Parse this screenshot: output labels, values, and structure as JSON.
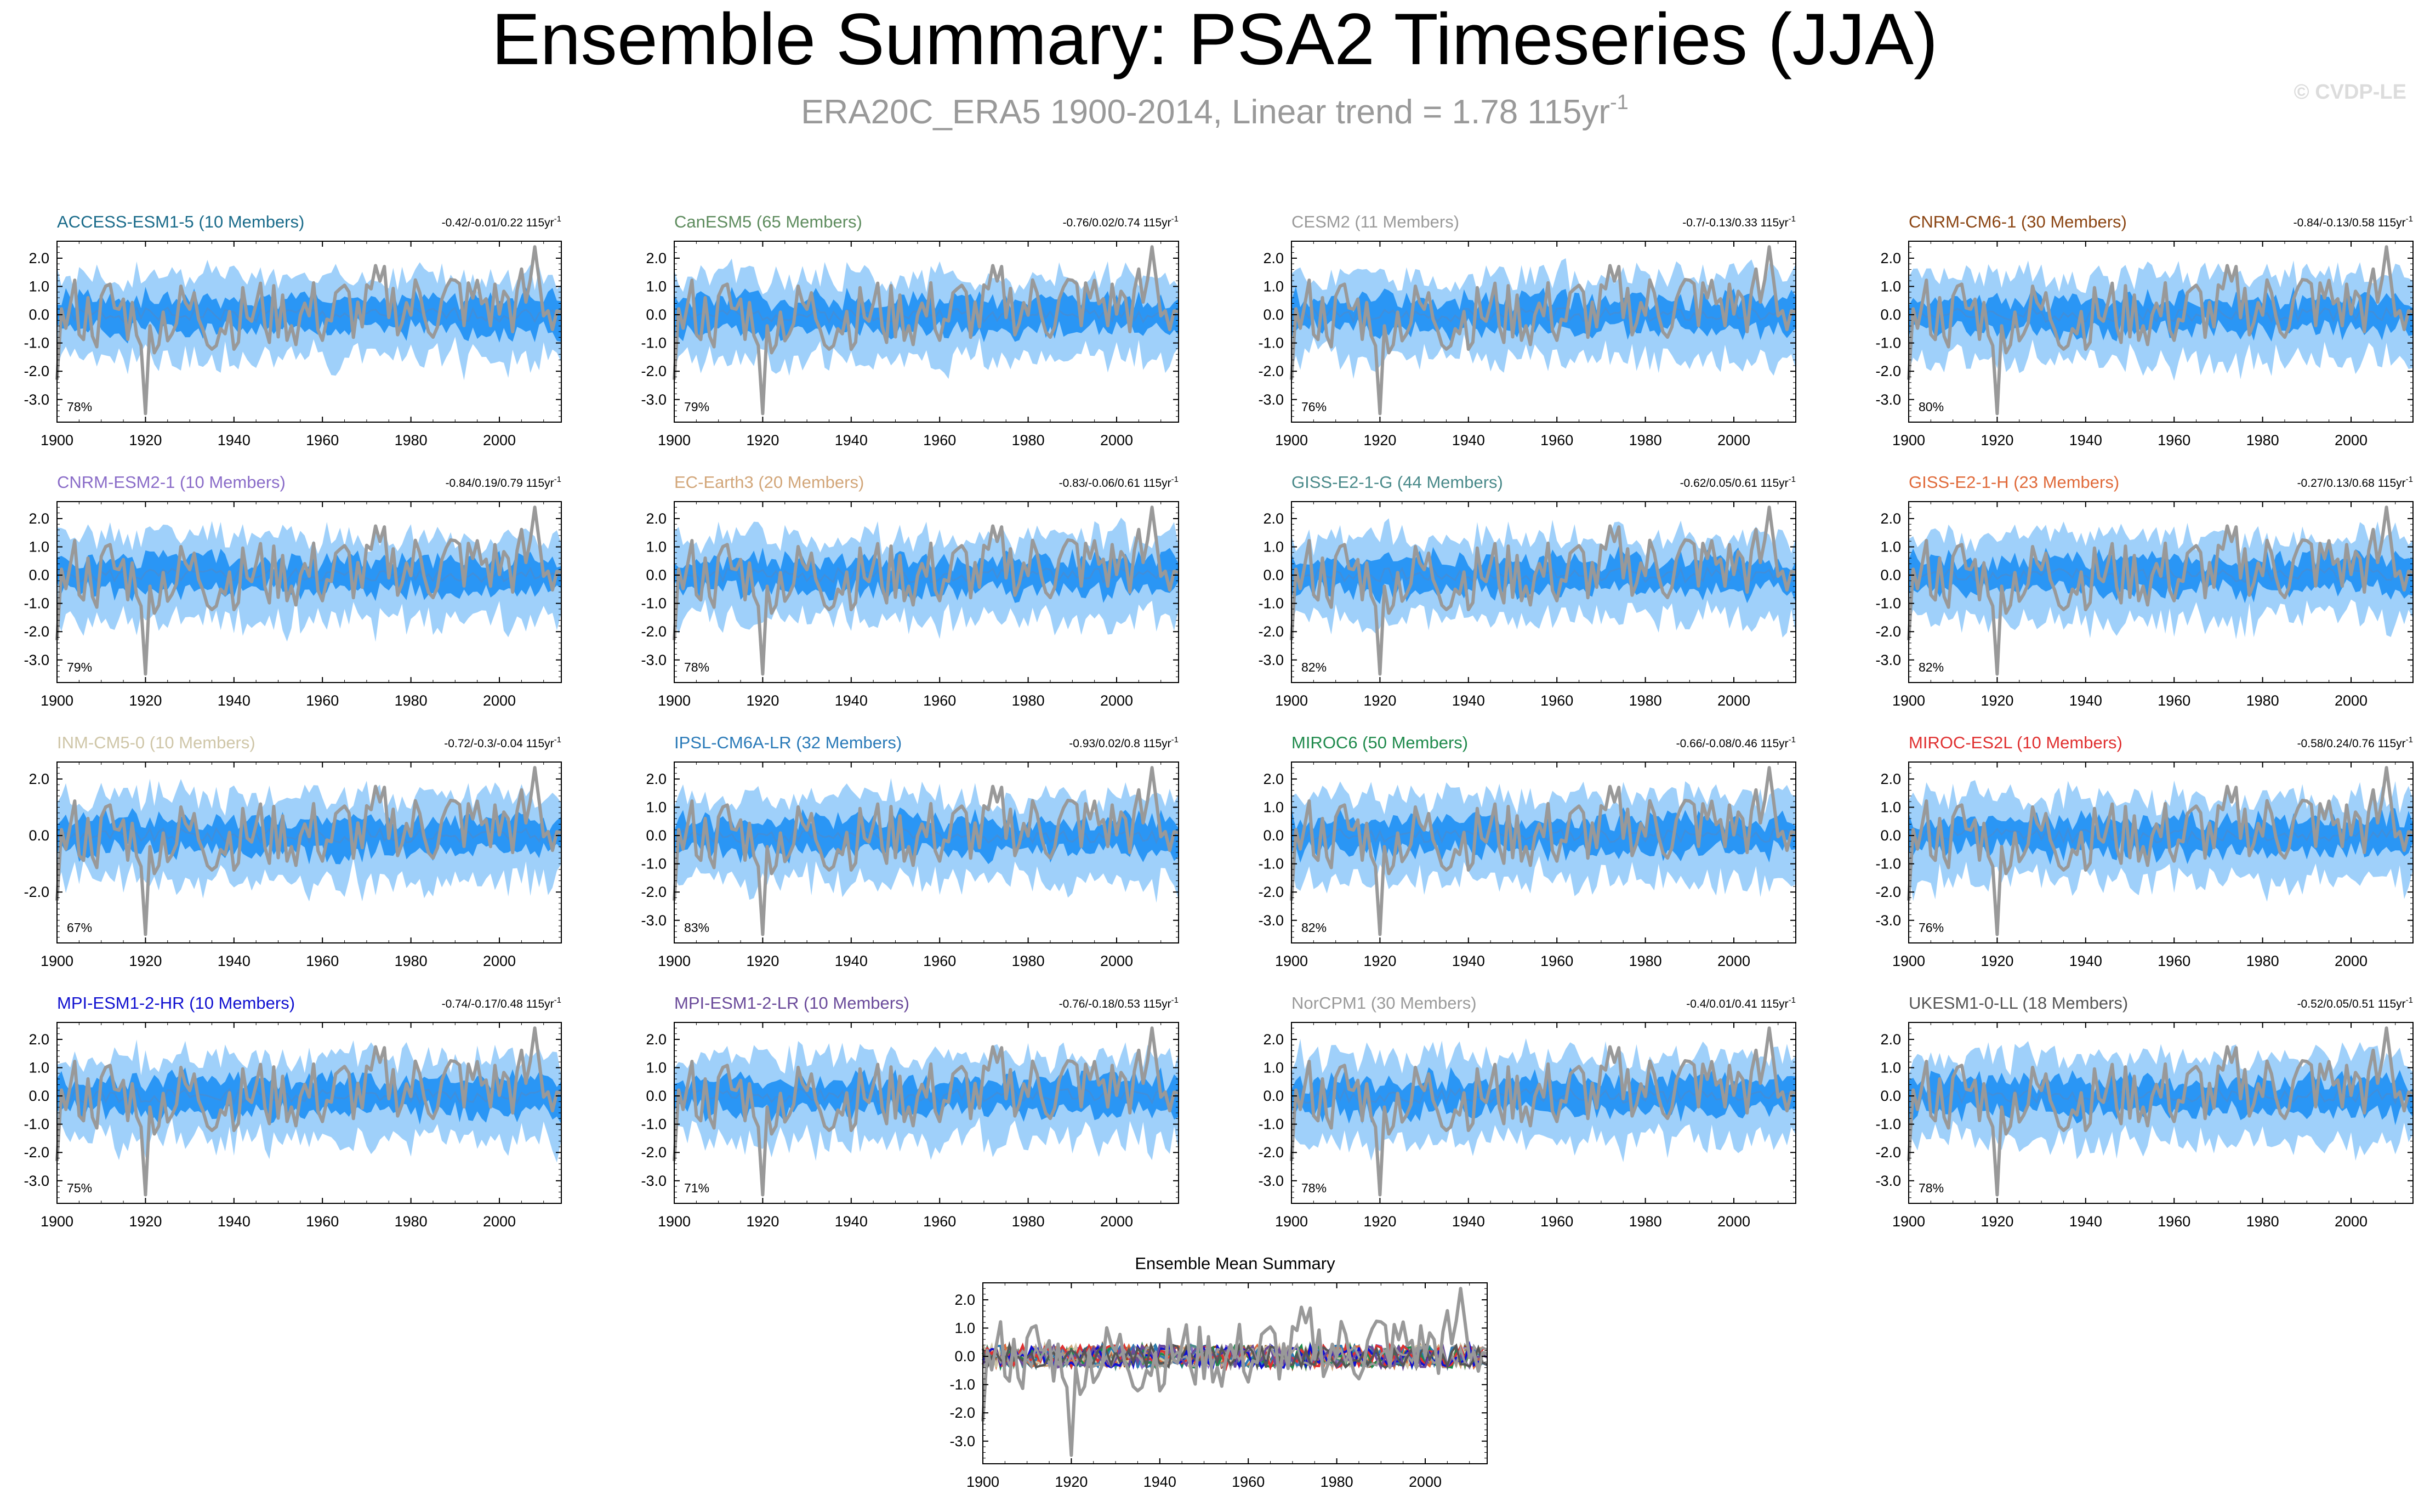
{
  "title": "Ensemble Summary: PSA2 Timeseries (JJA)",
  "subtitle": {
    "prefix": "ERA20C_ERA5 1900-2014, Linear trend = 1.78 115yr",
    "superscript": "-1"
  },
  "copyright": "© CVDP-LE",
  "colors": {
    "observation": "#999999",
    "ensemble_mean": "#3f8fdc",
    "inner_band": "#2a96f5",
    "outer_band": "#9fd0fa"
  },
  "chart_data": [
    {
      "type": "area",
      "name": "ACCESS-ESM1-5",
      "title": "ACCESS-ESM1-5 (10 Members)",
      "title_color": "#1a6b8a",
      "range": "-0.42/-0.01/0.22 115yr",
      "range_sup": "-1",
      "percent": "78%",
      "yticks": [
        "2.0",
        "1.0",
        "0.0",
        "-1.0",
        "-2.0",
        "-3.0"
      ],
      "ytick_values": [
        2,
        1,
        0,
        -1,
        -2,
        -3
      ],
      "xticks": [
        "1900",
        "1920",
        "1940",
        "1960",
        "1980",
        "2000"
      ],
      "xlim": [
        1900,
        2014
      ],
      "ylim": [
        -3.8,
        2.6
      ],
      "seed": 1
    },
    {
      "type": "area",
      "name": "CanESM5",
      "title": "CanESM5 (65 Members)",
      "title_color": "#5e8c5e",
      "range": "-0.76/0.02/0.74 115yr",
      "range_sup": "-1",
      "percent": "79%",
      "yticks": [
        "2.0",
        "1.0",
        "0.0",
        "-1.0",
        "-2.0",
        "-3.0"
      ],
      "ytick_values": [
        2,
        1,
        0,
        -1,
        -2,
        -3
      ],
      "xticks": [
        "1900",
        "1920",
        "1940",
        "1960",
        "1980",
        "2000"
      ],
      "xlim": [
        1900,
        2014
      ],
      "ylim": [
        -3.8,
        2.6
      ],
      "seed": 2
    },
    {
      "type": "area",
      "name": "CESM2",
      "title": "CESM2 (11 Members)",
      "title_color": "#9a9a9a",
      "range": "-0.7/-0.13/0.33 115yr",
      "range_sup": "-1",
      "percent": "76%",
      "yticks": [
        "2.0",
        "1.0",
        "0.0",
        "-1.0",
        "-2.0",
        "-3.0"
      ],
      "ytick_values": [
        2,
        1,
        0,
        -1,
        -2,
        -3
      ],
      "xticks": [
        "1900",
        "1920",
        "1940",
        "1960",
        "1980",
        "2000"
      ],
      "xlim": [
        1900,
        2014
      ],
      "ylim": [
        -3.8,
        2.6
      ],
      "seed": 3
    },
    {
      "type": "area",
      "name": "CNRM-CM6-1",
      "title": "CNRM-CM6-1 (30 Members)",
      "title_color": "#8b4513",
      "range": "-0.84/-0.13/0.58 115yr",
      "range_sup": "-1",
      "percent": "80%",
      "yticks": [
        "2.0",
        "1.0",
        "0.0",
        "-1.0",
        "-2.0",
        "-3.0"
      ],
      "ytick_values": [
        2,
        1,
        0,
        -1,
        -2,
        -3
      ],
      "xticks": [
        "1900",
        "1920",
        "1940",
        "1960",
        "1980",
        "2000"
      ],
      "xlim": [
        1900,
        2014
      ],
      "ylim": [
        -3.8,
        2.6
      ],
      "seed": 4
    },
    {
      "type": "area",
      "name": "CNRM-ESM2-1",
      "title": "CNRM-ESM2-1 (10 Members)",
      "title_color": "#8a6cc8",
      "range": "-0.84/0.19/0.79 115yr",
      "range_sup": "-1",
      "percent": "79%",
      "yticks": [
        "2.0",
        "1.0",
        "0.0",
        "-1.0",
        "-2.0",
        "-3.0"
      ],
      "ytick_values": [
        2,
        1,
        0,
        -1,
        -2,
        -3
      ],
      "xticks": [
        "1900",
        "1920",
        "1940",
        "1960",
        "1980",
        "2000"
      ],
      "xlim": [
        1900,
        2014
      ],
      "ylim": [
        -3.8,
        2.6
      ],
      "seed": 5
    },
    {
      "type": "area",
      "name": "EC-Earth3",
      "title": "EC-Earth3 (20 Members)",
      "title_color": "#d2a679",
      "range": "-0.83/-0.06/0.61 115yr",
      "range_sup": "-1",
      "percent": "78%",
      "yticks": [
        "2.0",
        "1.0",
        "0.0",
        "-1.0",
        "-2.0",
        "-3.0"
      ],
      "ytick_values": [
        2,
        1,
        0,
        -1,
        -2,
        -3
      ],
      "xticks": [
        "1900",
        "1920",
        "1940",
        "1960",
        "1980",
        "2000"
      ],
      "xlim": [
        1900,
        2014
      ],
      "ylim": [
        -3.8,
        2.6
      ],
      "seed": 6
    },
    {
      "type": "area",
      "name": "GISS-E2-1-G",
      "title": "GISS-E2-1-G (44 Members)",
      "title_color": "#4a8a8a",
      "range": "-0.62/0.05/0.61 115yr",
      "range_sup": "-1",
      "percent": "82%",
      "yticks": [
        "2.0",
        "1.0",
        "0.0",
        "-1.0",
        "-2.0",
        "-3.0"
      ],
      "ytick_values": [
        2,
        1,
        0,
        -1,
        -2,
        -3
      ],
      "xticks": [
        "1900",
        "1920",
        "1940",
        "1960",
        "1980",
        "2000"
      ],
      "xlim": [
        1900,
        2014
      ],
      "ylim": [
        -3.8,
        2.6
      ],
      "seed": 7
    },
    {
      "type": "area",
      "name": "GISS-E2-1-H",
      "title": "GISS-E2-1-H (23 Members)",
      "title_color": "#e06a3a",
      "range": "-0.27/0.13/0.68 115yr",
      "range_sup": "-1",
      "percent": "82%",
      "yticks": [
        "2.0",
        "1.0",
        "0.0",
        "-1.0",
        "-2.0",
        "-3.0"
      ],
      "ytick_values": [
        2,
        1,
        0,
        -1,
        -2,
        -3
      ],
      "xticks": [
        "1900",
        "1920",
        "1940",
        "1960",
        "1980",
        "2000"
      ],
      "xlim": [
        1900,
        2014
      ],
      "ylim": [
        -3.8,
        2.6
      ],
      "seed": 8
    },
    {
      "type": "area",
      "name": "INM-CM5-0",
      "title": "INM-CM5-0 (10 Members)",
      "title_color": "#cfc6a8",
      "range": "-0.72/-0.3/-0.04 115yr",
      "range_sup": "-1",
      "percent": "67%",
      "yticks": [
        "2.0",
        "0.0",
        "-2.0"
      ],
      "ytick_values": [
        2,
        0,
        -2
      ],
      "xticks": [
        "1900",
        "1920",
        "1940",
        "1960",
        "1980",
        "2000"
      ],
      "xlim": [
        1900,
        2014
      ],
      "ylim": [
        -3.8,
        2.6
      ],
      "seed": 9
    },
    {
      "type": "area",
      "name": "IPSL-CM6A-LR",
      "title": "IPSL-CM6A-LR (32 Members)",
      "title_color": "#2a7ab8",
      "range": "-0.93/0.02/0.8 115yr",
      "range_sup": "-1",
      "percent": "83%",
      "yticks": [
        "2.0",
        "1.0",
        "0.0",
        "-1.0",
        "-2.0",
        "-3.0"
      ],
      "ytick_values": [
        2,
        1,
        0,
        -1,
        -2,
        -3
      ],
      "xticks": [
        "1900",
        "1920",
        "1940",
        "1960",
        "1980",
        "2000"
      ],
      "xlim": [
        1900,
        2014
      ],
      "ylim": [
        -3.8,
        2.6
      ],
      "seed": 10
    },
    {
      "type": "area",
      "name": "MIROC6",
      "title": "MIROC6 (50 Members)",
      "title_color": "#1f8a4c",
      "range": "-0.66/-0.08/0.46 115yr",
      "range_sup": "-1",
      "percent": "82%",
      "yticks": [
        "2.0",
        "1.0",
        "0.0",
        "-1.0",
        "-2.0",
        "-3.0"
      ],
      "ytick_values": [
        2,
        1,
        0,
        -1,
        -2,
        -3
      ],
      "xticks": [
        "1900",
        "1920",
        "1940",
        "1960",
        "1980",
        "2000"
      ],
      "xlim": [
        1900,
        2014
      ],
      "ylim": [
        -3.8,
        2.6
      ],
      "seed": 11
    },
    {
      "type": "area",
      "name": "MIROC-ES2L",
      "title": "MIROC-ES2L (10 Members)",
      "title_color": "#e03030",
      "range": "-0.58/0.24/0.76 115yr",
      "range_sup": "-1",
      "percent": "76%",
      "yticks": [
        "2.0",
        "1.0",
        "0.0",
        "-1.0",
        "-2.0",
        "-3.0"
      ],
      "ytick_values": [
        2,
        1,
        0,
        -1,
        -2,
        -3
      ],
      "xticks": [
        "1900",
        "1920",
        "1940",
        "1960",
        "1980",
        "2000"
      ],
      "xlim": [
        1900,
        2014
      ],
      "ylim": [
        -3.8,
        2.6
      ],
      "seed": 12
    },
    {
      "type": "area",
      "name": "MPI-ESM1-2-HR",
      "title": "MPI-ESM1-2-HR (10 Members)",
      "title_color": "#1010d0",
      "range": "-0.74/-0.17/0.48 115yr",
      "range_sup": "-1",
      "percent": "75%",
      "yticks": [
        "2.0",
        "1.0",
        "0.0",
        "-1.0",
        "-2.0",
        "-3.0"
      ],
      "ytick_values": [
        2,
        1,
        0,
        -1,
        -2,
        -3
      ],
      "xticks": [
        "1900",
        "1920",
        "1940",
        "1960",
        "1980",
        "2000"
      ],
      "xlim": [
        1900,
        2014
      ],
      "ylim": [
        -3.8,
        2.6
      ],
      "seed": 13
    },
    {
      "type": "area",
      "name": "MPI-ESM1-2-LR",
      "title": "MPI-ESM1-2-LR (10 Members)",
      "title_color": "#6a4a9a",
      "range": "-0.76/-0.18/0.53 115yr",
      "range_sup": "-1",
      "percent": "71%",
      "yticks": [
        "2.0",
        "1.0",
        "0.0",
        "-1.0",
        "-2.0",
        "-3.0"
      ],
      "ytick_values": [
        2,
        1,
        0,
        -1,
        -2,
        -3
      ],
      "xticks": [
        "1900",
        "1920",
        "1940",
        "1960",
        "1980",
        "2000"
      ],
      "xlim": [
        1900,
        2014
      ],
      "ylim": [
        -3.8,
        2.6
      ],
      "seed": 14
    },
    {
      "type": "area",
      "name": "NorCPM1",
      "title": "NorCPM1 (30 Members)",
      "title_color": "#9a9a9a",
      "range": "-0.4/0.01/0.41 115yr",
      "range_sup": "-1",
      "percent": "78%",
      "yticks": [
        "2.0",
        "1.0",
        "0.0",
        "-1.0",
        "-2.0",
        "-3.0"
      ],
      "ytick_values": [
        2,
        1,
        0,
        -1,
        -2,
        -3
      ],
      "xticks": [
        "1900",
        "1920",
        "1940",
        "1960",
        "1980",
        "2000"
      ],
      "xlim": [
        1900,
        2014
      ],
      "ylim": [
        -3.8,
        2.6
      ],
      "seed": 15
    },
    {
      "type": "area",
      "name": "UKESM1-0-LL",
      "title": "UKESM1-0-LL (18 Members)",
      "title_color": "#555555",
      "range": "-0.52/0.05/0.51 115yr",
      "range_sup": "-1",
      "percent": "78%",
      "yticks": [
        "2.0",
        "1.0",
        "0.0",
        "-1.0",
        "-2.0",
        "-3.0"
      ],
      "ytick_values": [
        2,
        1,
        0,
        -1,
        -2,
        -3
      ],
      "xticks": [
        "1900",
        "1920",
        "1940",
        "1960",
        "1980",
        "2000"
      ],
      "xlim": [
        1900,
        2014
      ],
      "ylim": [
        -3.8,
        2.6
      ],
      "seed": 16
    }
  ],
  "summary": {
    "type": "line",
    "title": "Ensemble Mean Summary",
    "yticks": [
      "2.0",
      "1.0",
      "0.0",
      "-1.0",
      "-2.0",
      "-3.0"
    ],
    "ytick_values": [
      2,
      1,
      0,
      -1,
      -2,
      -3
    ],
    "xticks": [
      "1900",
      "1920",
      "1940",
      "1960",
      "1980",
      "2000"
    ],
    "xlim": [
      1900,
      2014
    ],
    "ylim": [
      -3.8,
      2.6
    ],
    "series_colors": [
      "#1a6b8a",
      "#5e8c5e",
      "#9a9a9a",
      "#8b4513",
      "#8a6cc8",
      "#d2a679",
      "#4a8a8a",
      "#e06a3a",
      "#cfc6a8",
      "#2a7ab8",
      "#1f8a4c",
      "#e03030",
      "#1010d0",
      "#6a4a9a",
      "#9a9a9a",
      "#555555"
    ]
  }
}
